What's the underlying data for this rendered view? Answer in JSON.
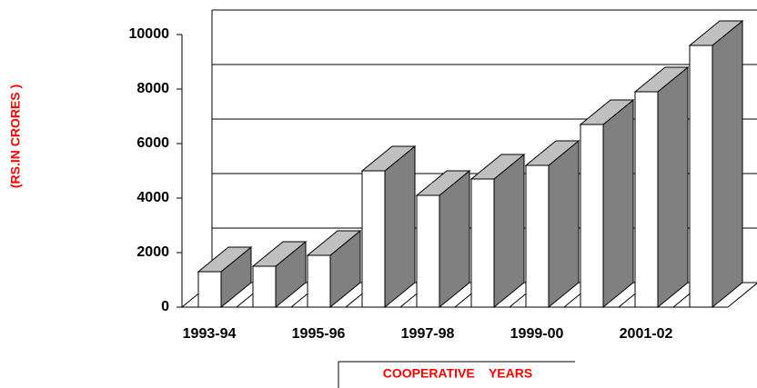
{
  "chart_data": {
    "type": "bar3d",
    "categories": [
      "1993-94",
      null,
      "1995-96",
      null,
      "1997-98",
      null,
      "1999-00",
      null,
      "2001-02",
      null
    ],
    "values": [
      1300,
      1500,
      1900,
      5000,
      4100,
      4700,
      5200,
      6700,
      7900,
      9600
    ],
    "ylabel": "(RS.IN CRORES )",
    "xlabel": "COOPERATIVE    YEARS",
    "ylim": [
      0,
      10000
    ],
    "yticks": [
      0,
      2000,
      4000,
      6000,
      8000,
      10000
    ],
    "grid": true,
    "color": "#ffffff",
    "top_color": "#c0c0c0",
    "side_color": "#808080"
  }
}
